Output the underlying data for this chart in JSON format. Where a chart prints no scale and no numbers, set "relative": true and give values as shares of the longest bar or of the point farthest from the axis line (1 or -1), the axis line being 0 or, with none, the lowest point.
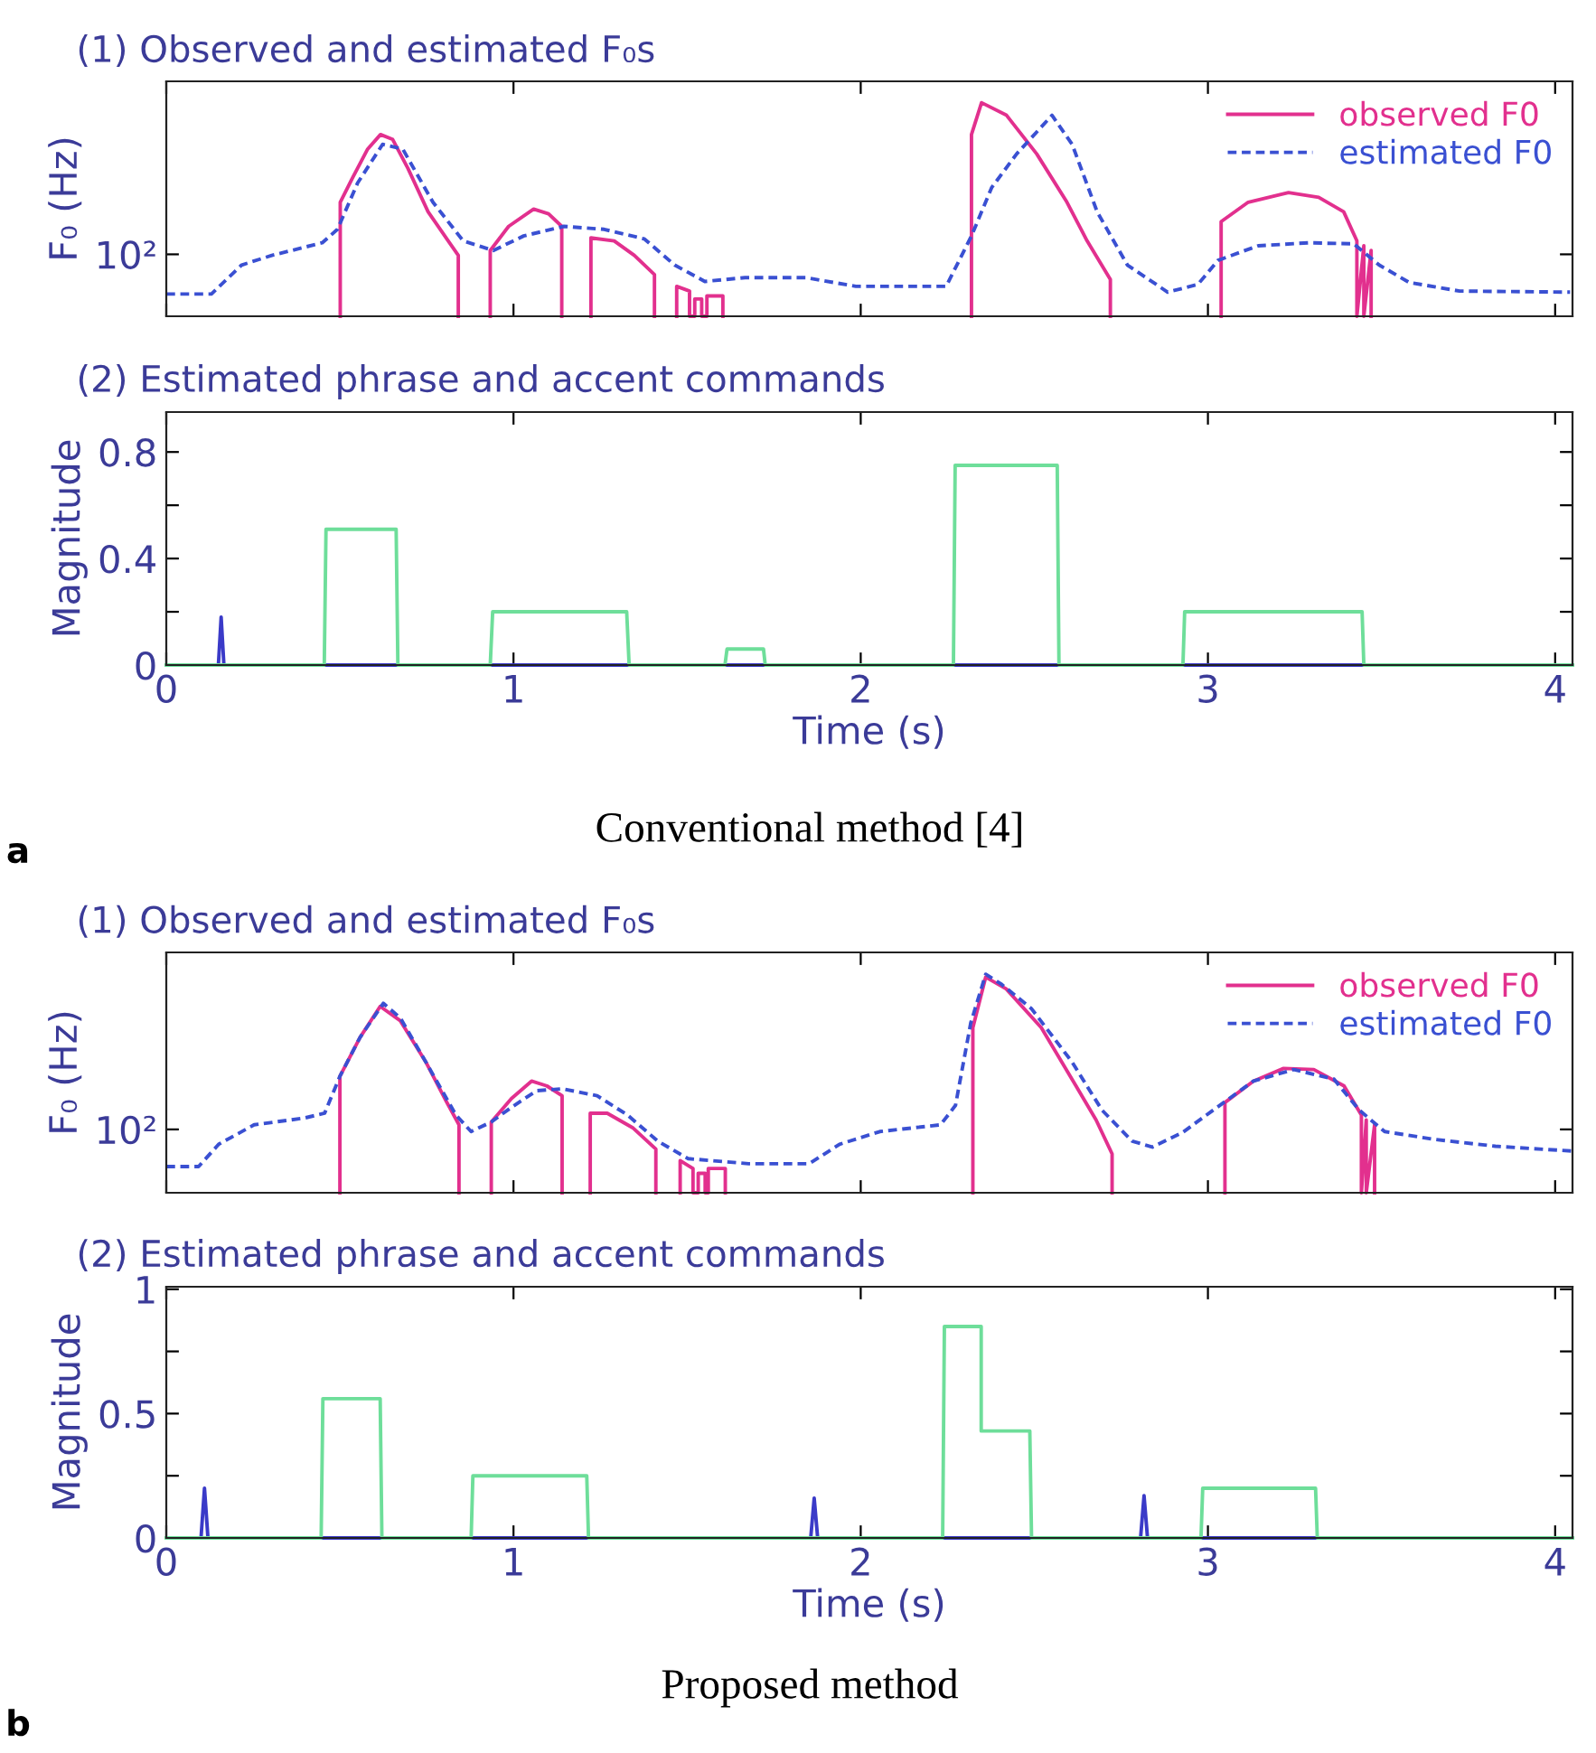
{
  "chart_data": [
    {
      "type": "line",
      "title": "(1) Observed and estimated F₀s",
      "ylabel": "F₀ (Hz)",
      "relative": true,
      "xlim": [
        0,
        4.05
      ],
      "xticks": [
        {
          "value": 0,
          "label": null
        },
        {
          "value": 1,
          "label": null
        },
        {
          "value": 2,
          "label": null
        },
        {
          "value": 3,
          "label": null
        },
        {
          "value": 4,
          "label": null
        }
      ],
      "tick_labels": "y",
      "legend": "top right",
      "grid": false,
      "annotations": [
        "10²"
      ],
      "series": [
        {
          "name": "observed F0",
          "color": "#e2308e",
          "line_style": "solid",
          "x": [
            0.501,
            0.501,
            0.536,
            0.58,
            0.617,
            0.652,
            0.696,
            0.754,
            0.812,
            0.841,
            0.841,
            0.88,
            0.933,
            0.933,
            0.986,
            1.058,
            1.101,
            1.139,
            1.139,
            1.18,
            1.223,
            1.223,
            1.29,
            1.348,
            1.406,
            1.406,
            1.44,
            1.47,
            1.47,
            1.507,
            1.507,
            1.522,
            1.522,
            1.542,
            1.542,
            1.557,
            1.557,
            1.603,
            1.603,
            2.0,
            2.319,
            2.319,
            2.348,
            2.42,
            2.507,
            2.594,
            2.652,
            2.719,
            2.719,
            2.9,
            3.038,
            3.038,
            3.116,
            3.232,
            3.319,
            3.391,
            3.429,
            3.429,
            3.449,
            3.449,
            3.47,
            3.47
          ],
          "values": [
            0,
            0.534,
            0.647,
            0.783,
            0.851,
            0.828,
            0.692,
            0.489,
            0.353,
            0.285,
            0,
            null,
            0,
            0.308,
            0.421,
            0.502,
            0.48,
            0.421,
            0,
            null,
            0,
            0.367,
            0.353,
            0.285,
            0.195,
            0,
            null,
            0,
            0.14,
            0.118,
            0,
            0,
            0.081,
            0.081,
            0,
            0,
            0.095,
            0.095,
            0,
            null,
            0,
            0.851,
            1.0,
            0.941,
            0.76,
            0.534,
            0.353,
            0.172,
            0,
            null,
            0,
            0.443,
            0.534,
            0.579,
            0.557,
            0.489,
            0.353,
            0,
            0.33,
            0,
            0.308,
            0
          ]
        },
        {
          "name": "estimated F0",
          "color": "#3a50d2",
          "line_style": "dashed",
          "x": [
            0,
            0.13,
            0.217,
            0.304,
            0.449,
            0.493,
            0.551,
            0.623,
            0.681,
            0.768,
            0.855,
            0.942,
            1.029,
            1.145,
            1.261,
            1.377,
            1.464,
            1.551,
            1.667,
            1.841,
            1.986,
            2.246,
            2.319,
            2.377,
            2.449,
            2.551,
            2.609,
            2.681,
            2.768,
            2.884,
            2.971,
            3.029,
            3.145,
            3.29,
            3.42,
            3.493,
            3.58,
            3.725,
            4.043
          ],
          "values": [
            0.104,
            0.104,
            0.24,
            0.285,
            0.344,
            0.407,
            0.624,
            0.805,
            0.783,
            0.534,
            0.353,
            0.308,
            0.376,
            0.421,
            0.407,
            0.362,
            0.24,
            0.163,
            0.181,
            0.181,
            0.14,
            0.14,
            0.376,
            0.602,
            0.76,
            0.941,
            0.805,
            0.489,
            0.24,
            0.113,
            0.149,
            0.262,
            0.33,
            0.344,
            0.339,
            0.24,
            0.158,
            0.118,
            0.113
          ]
        }
      ]
    },
    {
      "type": "line",
      "title": "(2) Estimated phrase and accent commands",
      "xlabel": "Time (s)",
      "ylabel": "Magnitude",
      "xlim": [
        0,
        4.05
      ],
      "xticks": [
        0,
        1,
        2,
        3,
        4
      ],
      "ylim": [
        0,
        0.95
      ],
      "yticks": [
        0,
        {
          "value": 0.2,
          "label": null
        },
        0.4,
        {
          "value": 0.6,
          "label": null
        },
        0.8
      ],
      "grid": false,
      "legend": false,
      "annotations": [
        "a",
        "Conventional method [4]"
      ],
      "series": [
        {
          "color": "#3a3ac8",
          "line_style": "solid",
          "x": [
            0.15,
            0.158,
            0.166,
            0.3,
            0.455,
            0.667,
            0.8,
            0.933,
            1.333,
            1.5,
            1.609,
            1.725,
            2.0,
            2.267,
            2.571,
            2.7,
            2.928,
            3.449
          ],
          "values": [
            0,
            0.18,
            0,
            null,
            0,
            0,
            null,
            0,
            0,
            null,
            0,
            0,
            null,
            0,
            0,
            null,
            0,
            0
          ]
        },
        {
          "color": "#6ede9a",
          "line_style": "solid",
          "x": [
            0,
            0.455,
            0.46,
            0.662,
            0.667,
            0.933,
            0.94,
            1.326,
            1.333,
            1.609,
            1.615,
            1.72,
            1.725,
            2.267,
            2.272,
            2.566,
            2.571,
            2.928,
            2.933,
            3.444,
            3.449,
            4.05
          ],
          "values": [
            0,
            0,
            0.51,
            0.51,
            0,
            0,
            0.2,
            0.2,
            0,
            0,
            0.06,
            0.06,
            0,
            0,
            0.75,
            0.75,
            0,
            0,
            0.2,
            0.2,
            0,
            0
          ]
        }
      ]
    },
    {
      "type": "line",
      "title": "(1) Observed and estimated F₀s",
      "ylabel": "F₀ (Hz)",
      "relative": true,
      "xlim": [
        0,
        4.05
      ],
      "xticks": [
        {
          "value": 0,
          "label": null
        },
        {
          "value": 1,
          "label": null
        },
        {
          "value": 2,
          "label": null
        },
        {
          "value": 3,
          "label": null
        },
        {
          "value": 4,
          "label": null
        }
      ],
      "tick_labels": "y",
      "legend": "top right",
      "grid": false,
      "annotations": [
        "10²"
      ],
      "series": [
        {
          "name": "observed F0",
          "color": "#e2308e",
          "line_style": "solid",
          "x": [
            0.5,
            0.5,
            0.558,
            0.616,
            0.674,
            0.747,
            0.805,
            0.843,
            0.843,
            0.89,
            0.936,
            0.936,
            0.994,
            1.052,
            1.096,
            1.14,
            1.14,
            1.18,
            1.221,
            1.221,
            1.27,
            1.343,
            1.41,
            1.41,
            1.45,
            1.48,
            1.48,
            1.517,
            1.517,
            1.532,
            1.532,
            1.552,
            1.552,
            1.561,
            1.561,
            1.61,
            1.61,
            2.0,
            2.323,
            2.323,
            2.36,
            2.419,
            2.52,
            2.62,
            2.678,
            2.724,
            2.724,
            2.9,
            3.049,
            3.049,
            3.131,
            3.218,
            3.305,
            3.392,
            3.442,
            3.442,
            3.456,
            3.456,
            3.48,
            3.48
          ],
          "values": [
            0,
            0.533,
            0.711,
            0.853,
            0.787,
            0.6,
            0.422,
            0.311,
            0,
            null,
            0,
            0.324,
            0.431,
            0.511,
            0.489,
            0.444,
            0,
            null,
            0,
            0.364,
            0.364,
            0.298,
            0.2,
            0,
            null,
            0,
            0.147,
            0.111,
            0,
            0,
            0.089,
            0.089,
            0,
            0,
            0.111,
            0.111,
            0,
            null,
            0,
            0.756,
            0.987,
            0.933,
            0.756,
            0.489,
            0.333,
            0.178,
            0,
            null,
            0,
            0.413,
            0.511,
            0.569,
            0.564,
            0.489,
            0.356,
            0,
            0.333,
            0,
            0.311,
            0
          ]
        },
        {
          "name": "estimated F0",
          "color": "#3a50d2",
          "line_style": "dashed",
          "x": [
            0,
            0.093,
            0.151,
            0.253,
            0.398,
            0.456,
            0.5,
            0.558,
            0.625,
            0.674,
            0.747,
            0.834,
            0.878,
            0.936,
            0.994,
            1.067,
            1.14,
            1.241,
            1.328,
            1.416,
            1.503,
            1.677,
            1.852,
            1.939,
            2.055,
            2.23,
            2.273,
            2.317,
            2.36,
            2.404,
            2.491,
            2.608,
            2.695,
            2.782,
            2.84,
            2.927,
            3.015,
            3.131,
            3.247,
            3.363,
            3.436,
            3.509,
            3.654,
            3.828,
            4.047
          ],
          "values": [
            0.12,
            0.12,
            0.222,
            0.311,
            0.342,
            0.364,
            0.533,
            0.711,
            0.867,
            0.8,
            0.6,
            0.356,
            0.28,
            0.324,
            0.391,
            0.467,
            0.476,
            0.444,
            0.356,
            0.236,
            0.156,
            0.133,
            0.133,
            0.222,
            0.28,
            0.311,
            0.4,
            0.778,
            1.0,
            0.956,
            0.844,
            0.6,
            0.378,
            0.236,
            0.209,
            0.276,
            0.378,
            0.511,
            0.564,
            0.52,
            0.378,
            0.28,
            0.244,
            0.213,
            0.191
          ]
        }
      ]
    },
    {
      "type": "line",
      "title": "(2) Estimated phrase and accent commands",
      "xlabel": "Time (s)",
      "ylabel": "Magnitude",
      "xlim": [
        0,
        4.05
      ],
      "xticks": [
        0,
        1,
        2,
        3,
        4
      ],
      "ylim": [
        0,
        1.01
      ],
      "yticks": [
        0,
        {
          "value": 0.25,
          "label": null
        },
        0.5,
        {
          "value": 0.75,
          "label": null
        },
        1
      ],
      "grid": false,
      "legend": false,
      "annotations": [
        "b",
        "Proposed method"
      ],
      "series": [
        {
          "color": "#3a3ac8",
          "line_style": "solid",
          "x": [
            0.1,
            0.11,
            0.12,
            0.3,
            0.446,
            0.621,
            0.75,
            0.878,
            1.216,
            1.5,
            1.856,
            1.866,
            1.876,
            2.0,
            2.236,
            2.492,
            2.6,
            2.806,
            2.816,
            2.826,
            2.9,
            2.98,
            3.315
          ],
          "values": [
            0,
            0.2,
            0,
            null,
            0,
            0,
            null,
            0,
            0,
            null,
            0,
            0.16,
            0,
            null,
            0,
            0,
            null,
            0,
            0.17,
            0,
            null,
            0,
            0
          ]
        },
        {
          "color": "#6ede9a",
          "line_style": "solid",
          "x": [
            0,
            0.446,
            0.451,
            0.616,
            0.621,
            0.878,
            0.883,
            1.211,
            1.216,
            2.236,
            2.241,
            2.347,
            2.347,
            2.487,
            2.492,
            2.98,
            2.985,
            3.31,
            3.315,
            4.05
          ],
          "values": [
            0,
            0,
            0.56,
            0.56,
            0,
            0,
            0.25,
            0.25,
            0,
            0,
            0.85,
            0.85,
            0.43,
            0.43,
            0,
            0,
            0.2,
            0.2,
            0,
            0
          ]
        }
      ]
    }
  ]
}
